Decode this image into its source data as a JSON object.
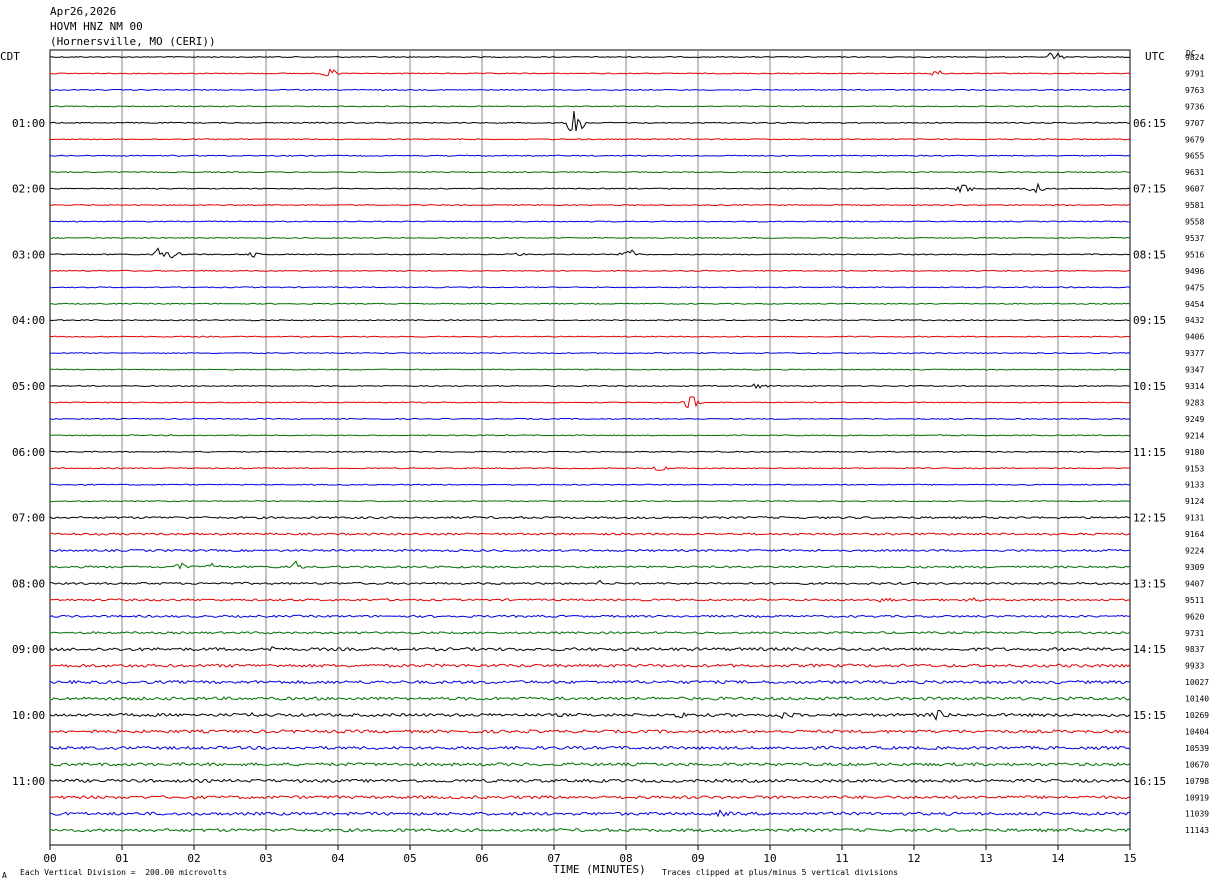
{
  "header": {
    "date": "Apr26,2026",
    "station": "HOVM HNZ NM 00",
    "location": "(Hornersville, MO (CERI))"
  },
  "left_label": "CDT",
  "right_label": "UTC",
  "dc_label": "DC",
  "footer": {
    "scale_note": "Each Vertical Division =  200.00 microvolts",
    "axis_title": "TIME (MINUTES)",
    "clip_note": "Traces clipped at plus/minus 5 vertical divisions",
    "corner_mark": "A"
  },
  "chart_data": {
    "type": "line",
    "x_ticks": [
      "00",
      "01",
      "02",
      "03",
      "04",
      "05",
      "06",
      "07",
      "08",
      "09",
      "10",
      "11",
      "12",
      "13",
      "14",
      "15"
    ],
    "xlim": [
      0,
      15
    ],
    "xlabel": "TIME (MINUTES)",
    "trace_colors": [
      "#000000",
      "#e00000",
      "#0000e0",
      "#007000"
    ],
    "left_times": [
      "01:00",
      "02:00",
      "03:00",
      "04:00",
      "05:00",
      "06:00",
      "07:00",
      "08:00",
      "09:00",
      "10:00",
      "11:00"
    ],
    "right_times": [
      "06:15",
      "07:15",
      "08:15",
      "09:15",
      "10:15",
      "11:15",
      "12:15",
      "13:15",
      "14:15",
      "15:15",
      "16:15"
    ],
    "dc_values": [
      "9824",
      "9791",
      "9763",
      "9736",
      "9707",
      "9679",
      "9655",
      "9631",
      "9607",
      "9581",
      "9558",
      "9537",
      "9516",
      "9496",
      "9475",
      "9454",
      "9432",
      "9406",
      "9377",
      "9347",
      "9314",
      "9283",
      "9249",
      "9214",
      "9180",
      "9153",
      "9133",
      "9124",
      "9131",
      "9164",
      "9224",
      "9309",
      "9407",
      "9511",
      "9620",
      "9731",
      "9837",
      "9933",
      "10027",
      "10140",
      "10269",
      "10404",
      "10539",
      "10670",
      "10798",
      "10919",
      "11039",
      "11143"
    ],
    "events": [
      {
        "trace": 0,
        "minute": 13.95,
        "amp": 7
      },
      {
        "trace": 1,
        "minute": 3.9,
        "amp": 5
      },
      {
        "trace": 1,
        "minute": 12.3,
        "amp": 4
      },
      {
        "trace": 4,
        "minute": 7.3,
        "amp": 16
      },
      {
        "trace": 8,
        "minute": 12.7,
        "amp": 6
      },
      {
        "trace": 8,
        "minute": 13.7,
        "amp": 5
      },
      {
        "trace": 12,
        "minute": 1.5,
        "amp": 6
      },
      {
        "trace": 12,
        "minute": 1.7,
        "amp": 4
      },
      {
        "trace": 12,
        "minute": 2.8,
        "amp": 3
      },
      {
        "trace": 12,
        "minute": 6.5,
        "amp": 2
      },
      {
        "trace": 12,
        "minute": 8.05,
        "amp": 7
      },
      {
        "trace": 20,
        "minute": 9.85,
        "amp": 3
      },
      {
        "trace": 21,
        "minute": 8.9,
        "amp": 8
      },
      {
        "trace": 25,
        "minute": 8.5,
        "amp": 3
      },
      {
        "trace": 31,
        "minute": 1.8,
        "amp": 5
      },
      {
        "trace": 31,
        "minute": 2.3,
        "amp": 5
      },
      {
        "trace": 31,
        "minute": 3.4,
        "amp": 6
      },
      {
        "trace": 32,
        "minute": 7.65,
        "amp": 4
      },
      {
        "trace": 33,
        "minute": 11.6,
        "amp": 3
      },
      {
        "trace": 33,
        "minute": 12.85,
        "amp": 3
      },
      {
        "trace": 36,
        "minute": 3.1,
        "amp": 3
      },
      {
        "trace": 40,
        "minute": 2.7,
        "amp": 3
      },
      {
        "trace": 40,
        "minute": 8.8,
        "amp": 3
      },
      {
        "trace": 40,
        "minute": 10.2,
        "amp": 4
      },
      {
        "trace": 40,
        "minute": 12.35,
        "amp": 7
      },
      {
        "trace": 46,
        "minute": 9.3,
        "amp": 3
      }
    ]
  }
}
